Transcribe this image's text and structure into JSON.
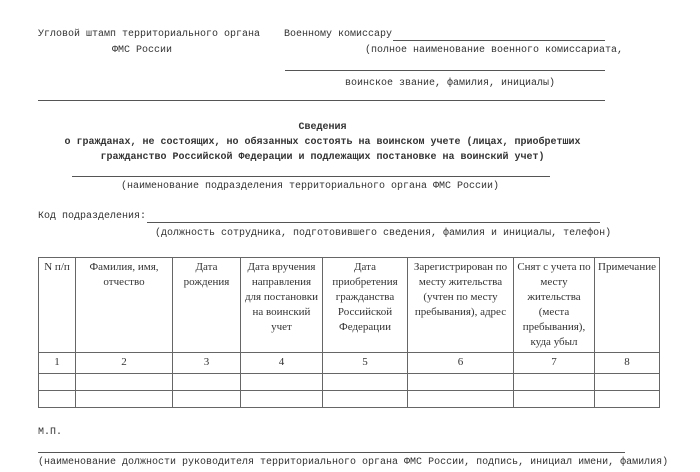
{
  "stamp": {
    "line1": "Угловой штамп территориального органа",
    "line2": "ФМС России"
  },
  "addressee": {
    "to": "Военному комиссару",
    "hint1": "(полное наименование военного комиссариата,",
    "hint2": "воинское звание, фамилия, инициалы)"
  },
  "title": {
    "heading": "Сведения",
    "line1": "о гражданах, не состоящих, но обязанных состоять на воинском учете (лицах, приобретших",
    "line2": "гражданство Российской Федерации и подлежащих постановке на воинский учет)"
  },
  "unit_hint": "(наименование подразделения территориального органа ФМС России)",
  "code": {
    "label": "Код подразделения:",
    "hint": "(должность сотрудника, подготовившего сведения, фамилия и инициалы, телефон)"
  },
  "table": {
    "header": [
      "N п/п",
      "Фамилия, имя, отчество",
      "Дата рождения",
      "Дата вручения направления для постановки на воинский учет",
      "Дата приобретения гражданства Российской Федерации",
      "Зарегистрирован по месту жительства (учтен по месту пребывания), адрес",
      "Снят с учета по месту жительства (места пребывания), куда убыл",
      "Примечание"
    ],
    "numbers": [
      1,
      2,
      3,
      4,
      5,
      6,
      7,
      8
    ]
  },
  "footer": {
    "stamp": "М.П.",
    "hint": "(наименование должности руководителя территориального органа ФМС России, подпись, инициал имени, фамилия)"
  }
}
